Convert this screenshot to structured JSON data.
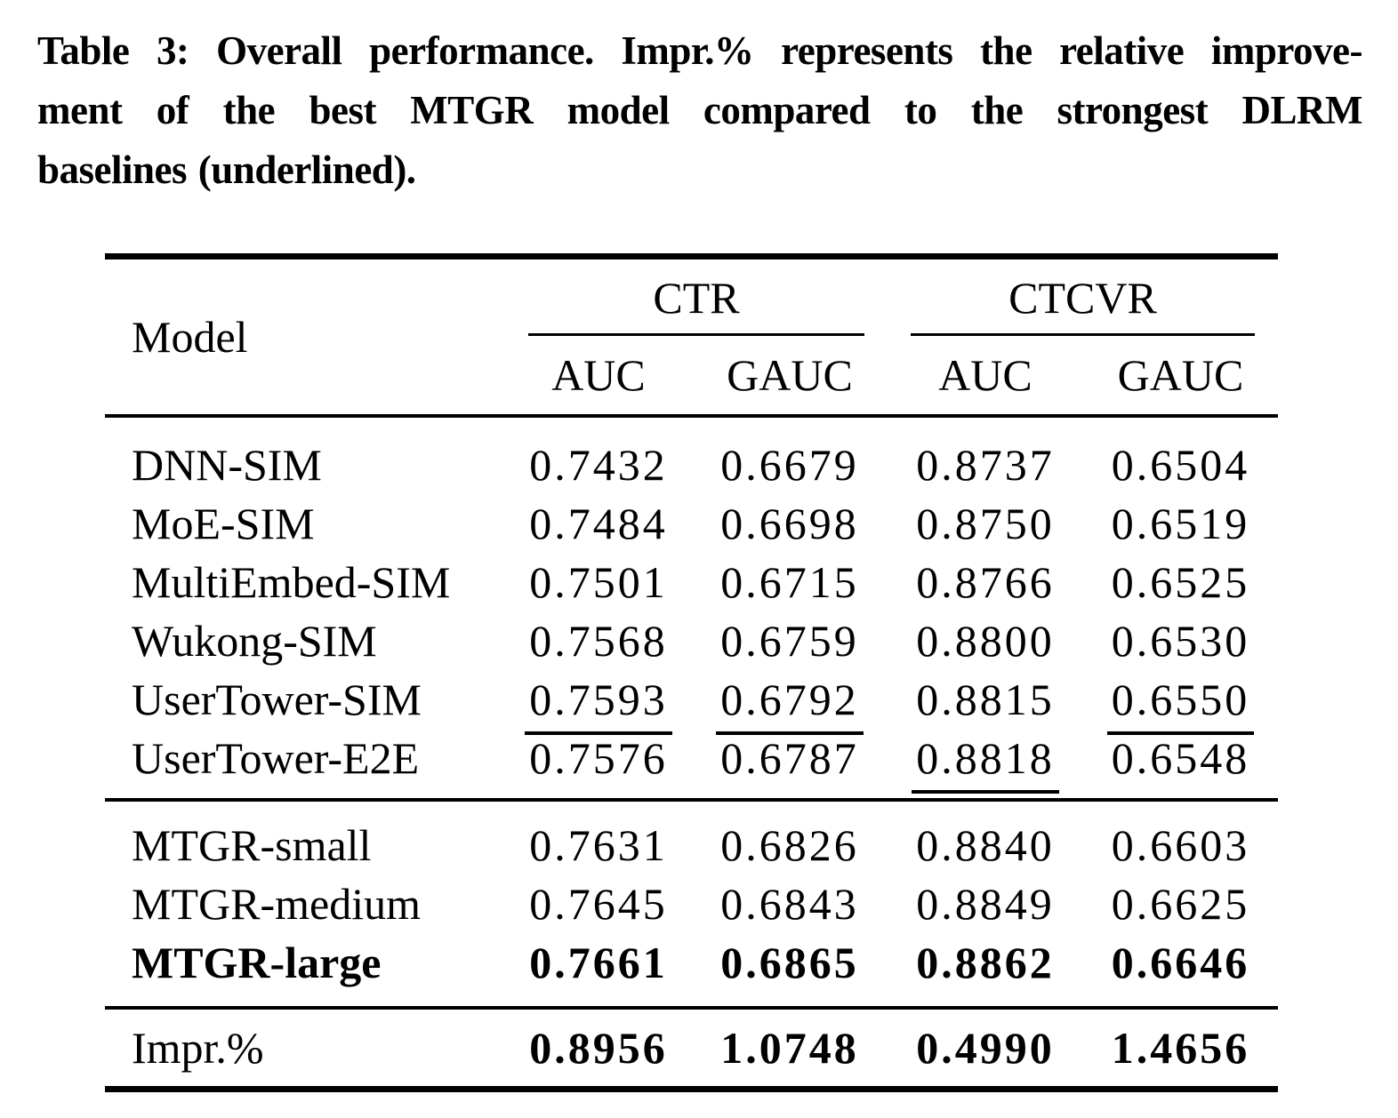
{
  "colors": {
    "text": "#000000",
    "background": "#ffffff"
  },
  "caption": {
    "lines": [
      "Table 3: Overall performance. Impr.% represents the relative improve-",
      "ment of the best MTGR model compared to the strongest DLRM",
      "baselines (underlined)."
    ]
  },
  "table": {
    "model_header": "Model",
    "groups": [
      {
        "label": "CTR"
      },
      {
        "label": "CTCVR"
      }
    ],
    "subheaders": [
      "AUC",
      "GAUC",
      "AUC",
      "GAUC"
    ],
    "rows": [
      {
        "model": "DNN-SIM",
        "values": [
          "0.7432",
          "0.6679",
          "0.8737",
          "0.6504"
        ]
      },
      {
        "model": "MoE-SIM",
        "values": [
          "0.7484",
          "0.6698",
          "0.8750",
          "0.6519"
        ]
      },
      {
        "model": "MultiEmbed-SIM",
        "values": [
          "0.7501",
          "0.6715",
          "0.8766",
          "0.6525"
        ]
      },
      {
        "model": "Wukong-SIM",
        "values": [
          "0.7568",
          "0.6759",
          "0.8800",
          "0.6530"
        ]
      },
      {
        "model": "UserTower-SIM",
        "values": [
          "0.7593",
          "0.6792",
          "0.8815",
          "0.6550"
        ]
      },
      {
        "model": "UserTower-E2E",
        "values": [
          "0.7576",
          "0.6787",
          "0.8818",
          "0.6548"
        ]
      },
      {
        "model": "MTGR-small",
        "values": [
          "0.7631",
          "0.6826",
          "0.8840",
          "0.6603"
        ]
      },
      {
        "model": "MTGR-medium",
        "values": [
          "0.7645",
          "0.6843",
          "0.8849",
          "0.6625"
        ]
      },
      {
        "model": "MTGR-large",
        "values": [
          "0.7661",
          "0.6865",
          "0.8862",
          "0.6646"
        ]
      },
      {
        "model": "Impr.%",
        "values": [
          "0.8956",
          "1.0748",
          "0.4990",
          "1.4656"
        ]
      }
    ]
  },
  "chart_data": {
    "type": "table",
    "title": "Table 3: Overall performance",
    "column_groups": [
      "CTR",
      "CTCVR"
    ],
    "columns": [
      "Model",
      "CTR AUC",
      "CTR GAUC",
      "CTCVR AUC",
      "CTCVR GAUC"
    ],
    "rows": [
      [
        "DNN-SIM",
        0.7432,
        0.6679,
        0.8737,
        0.6504
      ],
      [
        "MoE-SIM",
        0.7484,
        0.6698,
        0.875,
        0.6519
      ],
      [
        "MultiEmbed-SIM",
        0.7501,
        0.6715,
        0.8766,
        0.6525
      ],
      [
        "Wukong-SIM",
        0.7568,
        0.6759,
        0.88,
        0.653
      ],
      [
        "UserTower-SIM",
        0.7593,
        0.6792,
        0.8815,
        0.655
      ],
      [
        "UserTower-E2E",
        0.7576,
        0.6787,
        0.8818,
        0.6548
      ],
      [
        "MTGR-small",
        0.7631,
        0.6826,
        0.884,
        0.6603
      ],
      [
        "MTGR-medium",
        0.7645,
        0.6843,
        0.8849,
        0.6625
      ],
      [
        "MTGR-large",
        0.7661,
        0.6865,
        0.8862,
        0.6646
      ],
      [
        "Impr.%",
        0.8956,
        1.0748,
        0.499,
        1.4656
      ]
    ]
  }
}
